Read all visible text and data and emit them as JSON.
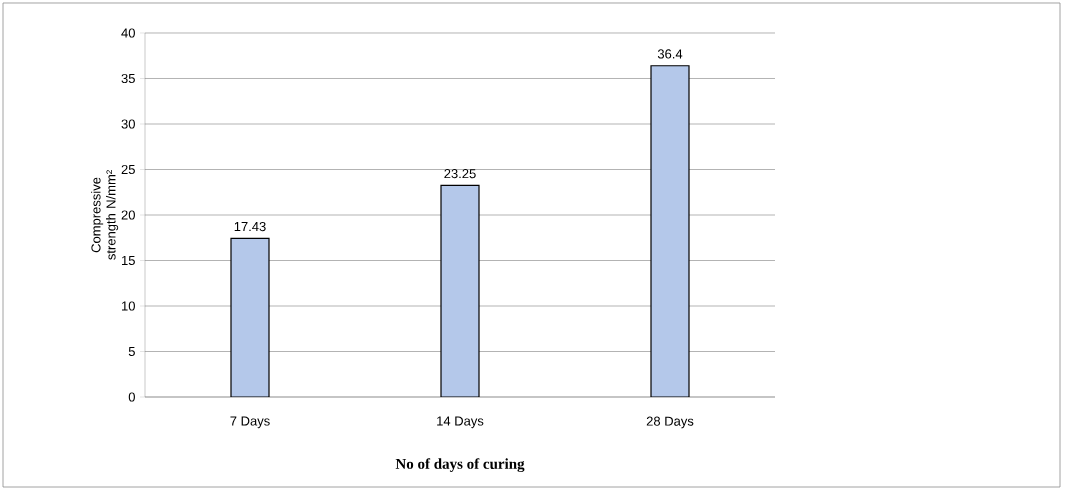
{
  "chart_data": {
    "type": "bar",
    "xlabel": "No of days of curing",
    "ylabel": "Compressive strength N/mm²",
    "categories": [
      "7 Days",
      "14 Days",
      "28 Days"
    ],
    "values": [
      17.43,
      23.25,
      36.4
    ],
    "color": "#b4c8ea",
    "ylim": [
      0,
      40
    ],
    "yticks": [
      0,
      5,
      10,
      15,
      20,
      25,
      30,
      35,
      40
    ],
    "grid": "y",
    "data_labels": true
  }
}
